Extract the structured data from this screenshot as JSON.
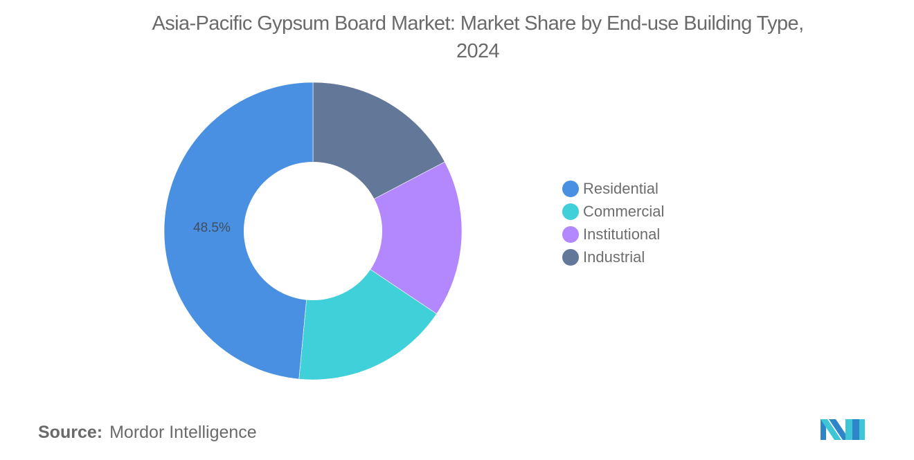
{
  "header": {
    "title_line1": "Asia-Pacific Gypsum Board Market: Market Share by End-use Building Type,",
    "title_line2": "2024"
  },
  "chart_data": {
    "type": "pie",
    "variant": "donut",
    "title": "Asia-Pacific Gypsum Board Market: Market Share by End-use Building Type, 2024",
    "categories": [
      "Residential",
      "Commercial",
      "Institutional",
      "Industrial"
    ],
    "values": [
      48.5,
      17.1,
      17.1,
      17.3
    ],
    "colors": [
      "#4A90E2",
      "#3FD0D9",
      "#B388FF",
      "#637899"
    ],
    "data_labels": [
      {
        "category": "Residential",
        "text": "48.5%"
      }
    ],
    "legend_position": "right",
    "units": "%"
  },
  "legend": {
    "items": [
      {
        "label": "Residential",
        "color": "#4A90E2"
      },
      {
        "label": "Commercial",
        "color": "#3FD0D9"
      },
      {
        "label": "Institutional",
        "color": "#B388FF"
      },
      {
        "label": "Industrial",
        "color": "#637899"
      }
    ]
  },
  "annotations": {
    "residential_label": "48.5%"
  },
  "footer": {
    "source_label": "Source:",
    "source_value": "Mordor Intelligence"
  },
  "logo": {
    "icon": "mordor-intelligence-logo-icon",
    "colors": [
      "#2E86C8",
      "#3FC6D6"
    ]
  }
}
